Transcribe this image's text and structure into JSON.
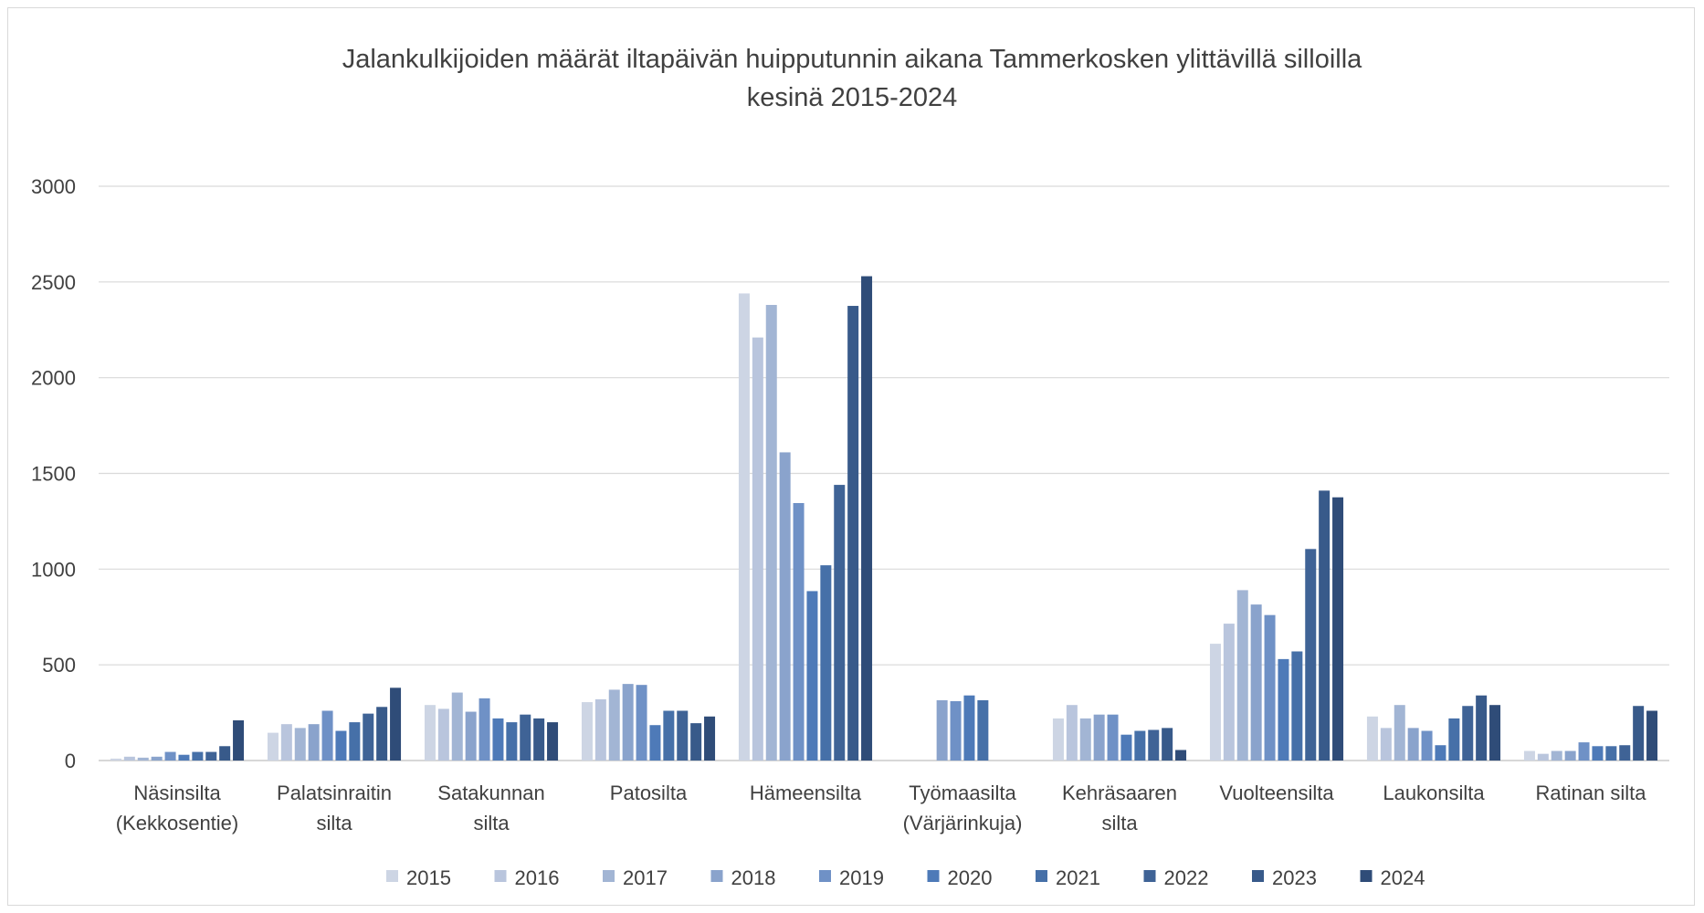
{
  "chart_data": {
    "type": "bar",
    "title": [
      "Jalankulkijoiden määrät iltapäivän huipputunnin aikana Tammerkosken ylittävillä silloilla",
      "kesinä 2015-2024"
    ],
    "xlabel": "",
    "ylabel": "",
    "ylim": [
      0,
      3000
    ],
    "yticks": [
      0,
      500,
      1000,
      1500,
      2000,
      2500,
      3000
    ],
    "grid": true,
    "legend_position": "bottom",
    "categories": [
      [
        "Näsinsilta",
        "(Kekkosentie)"
      ],
      [
        "Palatsinraitin",
        "silta"
      ],
      [
        "Satakunnan",
        "silta"
      ],
      [
        "Patosilta"
      ],
      [
        "Hämeensilta"
      ],
      [
        "Työmaasilta",
        "(Värjärinkuja)"
      ],
      [
        "Kehräsaaren",
        "silta"
      ],
      [
        "Vuolteensilta"
      ],
      [
        "Laukonsilta"
      ],
      [
        "Ratinan silta"
      ]
    ],
    "series": [
      {
        "name": "2015",
        "color": "#cdd5e4",
        "values": [
          10,
          145,
          290,
          305,
          2440,
          null,
          220,
          610,
          230,
          50
        ]
      },
      {
        "name": "2016",
        "color": "#b9c5dd",
        "values": [
          20,
          190,
          270,
          320,
          2210,
          null,
          290,
          715,
          170,
          35
        ]
      },
      {
        "name": "2017",
        "color": "#a2b5d4",
        "values": [
          15,
          170,
          355,
          370,
          2380,
          null,
          220,
          890,
          290,
          50
        ]
      },
      {
        "name": "2018",
        "color": "#8aa3cc",
        "values": [
          20,
          190,
          255,
          400,
          1610,
          315,
          240,
          815,
          170,
          50
        ]
      },
      {
        "name": "2019",
        "color": "#6f91c6",
        "values": [
          45,
          260,
          325,
          395,
          1345,
          310,
          240,
          760,
          155,
          95
        ]
      },
      {
        "name": "2020",
        "color": "#4e7ab8",
        "values": [
          30,
          155,
          220,
          185,
          885,
          340,
          135,
          530,
          80,
          75
        ]
      },
      {
        "name": "2021",
        "color": "#4670a8",
        "values": [
          45,
          200,
          200,
          260,
          1020,
          315,
          155,
          570,
          220,
          75
        ]
      },
      {
        "name": "2022",
        "color": "#3f6396",
        "values": [
          45,
          245,
          240,
          260,
          1440,
          null,
          160,
          1105,
          285,
          80
        ]
      },
      {
        "name": "2023",
        "color": "#385a8a",
        "values": [
          75,
          280,
          220,
          195,
          2375,
          null,
          170,
          1410,
          340,
          285
        ]
      },
      {
        "name": "2024",
        "color": "#2f4c78",
        "values": [
          210,
          380,
          200,
          230,
          2530,
          null,
          55,
          1375,
          290,
          260
        ]
      }
    ]
  }
}
